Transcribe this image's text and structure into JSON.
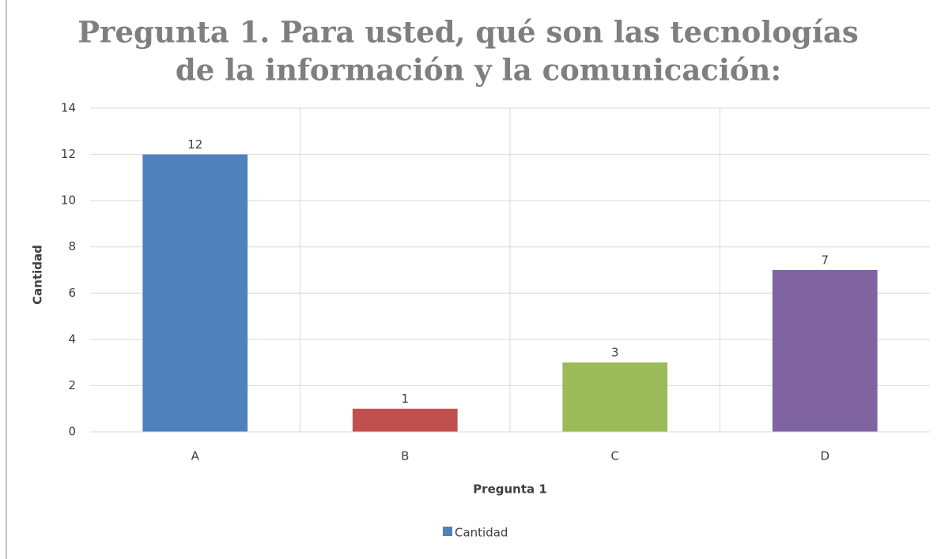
{
  "chart_data": {
    "type": "bar",
    "title": [
      "Pregunta 1. Para usted, qué son las tecnologías",
      "de la información y la comunicación:"
    ],
    "x_label": "Pregunta 1",
    "y_label": "Cantidad",
    "categories": [
      "A",
      "B",
      "C",
      "D"
    ],
    "series": [
      {
        "name": "Cantidad",
        "color": "#4f81bd",
        "values": [
          12,
          1,
          3,
          7
        ]
      }
    ],
    "bar_colors": [
      "#4f81bd",
      "#c0504d",
      "#9bbb59",
      "#8064a2"
    ],
    "ylim": [
      0,
      14
    ],
    "yticks": [
      0,
      2,
      4,
      6,
      8,
      10,
      12,
      14
    ],
    "grid": true,
    "legend": "bottom"
  }
}
